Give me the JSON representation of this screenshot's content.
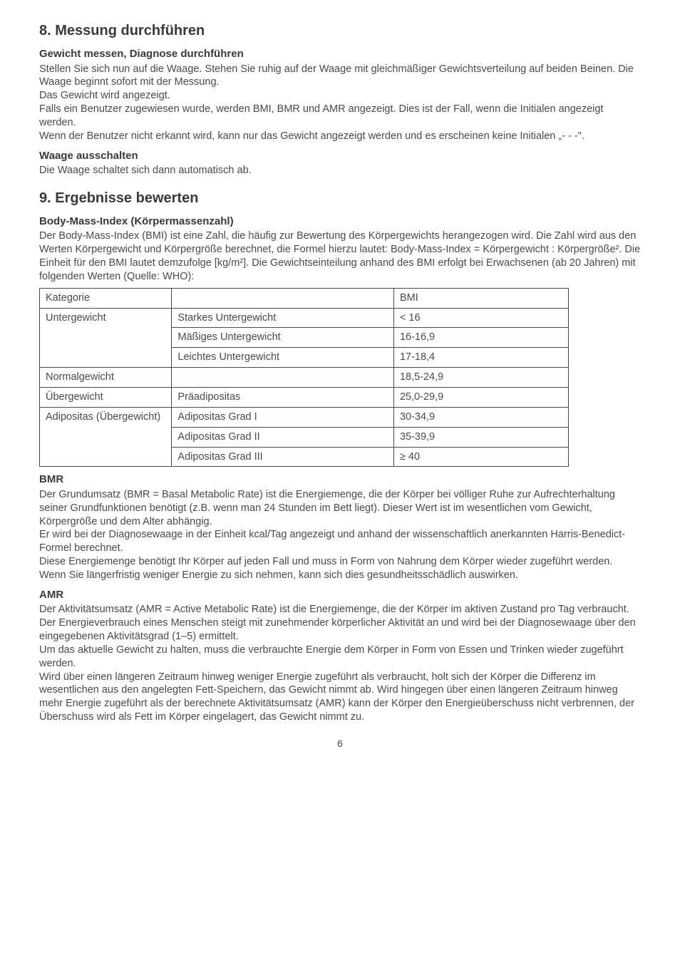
{
  "section8": {
    "heading": "8. Messung durchführen",
    "sub1_title": "Gewicht messen, Diagnose durchführen",
    "sub1_p1": "Stellen Sie sich nun auf die Waage. Stehen Sie ruhig auf der Waage mit gleichmäßiger Gewichtsverteilung auf beiden Beinen. Die Waage beginnt sofort mit der Messung.",
    "sub1_p2": "Das Gewicht wird angezeigt.",
    "sub1_p3": "Falls ein Benutzer zugewiesen wurde, werden BMI, BMR und AMR angezeigt. Dies ist der Fall, wenn die Initialen angezeigt werden.",
    "sub1_p4": "Wenn der Benutzer nicht erkannt wird, kann nur das Gewicht angezeigt werden und es erscheinen keine Initialen „- - -\".",
    "sub2_title": "Waage ausschalten",
    "sub2_p1": "Die Waage schaltet sich dann automatisch ab."
  },
  "section9": {
    "heading": "9. Ergebnisse bewerten",
    "sub1_title": "Body-Mass-Index (Körpermassenzahl)",
    "sub1_p1": "Der Body-Mass-Index (BMI) ist eine Zahl, die häufig zur Bewertung des Körpergewichts herangezogen wird. Die Zahl wird aus den Werten Körpergewicht und Körpergröße berechnet, die Formel hierzu lautet: Body-Mass-Index = Körpergewicht : Körpergröße². Die Einheit für den BMI lautet demzufolge [kg/m²]. Die Gewichtseinteilung anhand des BMI erfolgt bei Erwachsenen (ab 20 Jahren) mit folgenden Werten (Quelle: WHO):",
    "table": {
      "header": {
        "c1": "Kategorie",
        "c2": "",
        "c3": "BMI"
      },
      "rows": [
        {
          "c1": "Untergewicht",
          "c2": "Starkes Untergewicht",
          "c3": "< 16",
          "rowspan": 3
        },
        {
          "c2": "Mäßiges Untergewicht",
          "c3": "16-16,9"
        },
        {
          "c2": "Leichtes Untergewicht",
          "c3": "17-18,4"
        },
        {
          "c1": "Normalgewicht",
          "c2": "",
          "c3": "18,5-24,9",
          "rowspan": 1
        },
        {
          "c1": "Übergewicht",
          "c2": "Präadipositas",
          "c3": "25,0-29,9",
          "rowspan": 1
        },
        {
          "c1": "Adipositas (Übergewicht)",
          "c2": "Adipositas Grad I",
          "c3": "30-34,9",
          "rowspan": 3
        },
        {
          "c2": "Adipositas Grad II",
          "c3": "35-39,9"
        },
        {
          "c2": "Adipositas Grad III",
          "c3": "≥ 40"
        }
      ]
    },
    "sub2_title": "BMR",
    "sub2_p1": "Der Grundumsatz (BMR = Basal Metabolic Rate) ist die Energiemenge, die der Körper bei völliger Ruhe zur Aufrechterhaltung seiner Grundfunktionen benötigt (z.B. wenn man 24 Stunden im Bett liegt). Dieser Wert ist im wesentlichen vom Gewicht, Körpergröße und dem Alter abhängig.",
    "sub2_p2": "Er wird bei der Diagnosewaage in der Einheit kcal/Tag angezeigt und anhand der wissenschaftlich anerkannten Harris-Benedict-Formel berechnet.",
    "sub2_p3": "Diese Energiemenge benötigt Ihr Körper auf jeden Fall und muss in Form von Nahrung dem Körper wieder zugeführt werden. Wenn Sie längerfristig weniger Energie zu sich nehmen, kann sich dies gesundheitsschädlich auswirken.",
    "sub3_title": "AMR",
    "sub3_p1": "Der Aktivitätsumsatz (AMR = Active Metabolic Rate) ist die Energiemenge, die der Körper im aktiven Zustand pro Tag verbraucht. Der Energieverbrauch eines Menschen steigt mit zunehmender körperlicher Aktivität an und wird bei der Diagnosewaage über den eingegebenen Aktivitätsgrad (1–5) ermittelt.",
    "sub3_p2": "Um das aktuelle Gewicht zu halten, muss die verbrauchte Energie dem Körper in Form von Essen und Trinken wieder zugeführt werden.",
    "sub3_p3": "Wird über einen längeren Zeitraum hinweg weniger Energie zugeführt als verbraucht, holt sich der Körper die Differenz im wesentlichen aus den angelegten Fett-Speichern, das Gewicht nimmt ab. Wird hingegen über einen längeren Zeitraum hinweg mehr Energie zugeführt als der berechnete Aktivitätsumsatz (AMR) kann der Körper den Energieüberschuss nicht verbrennen, der Überschuss wird als Fett im Körper eingelagert, das Gewicht nimmt zu."
  },
  "page_number": "6"
}
